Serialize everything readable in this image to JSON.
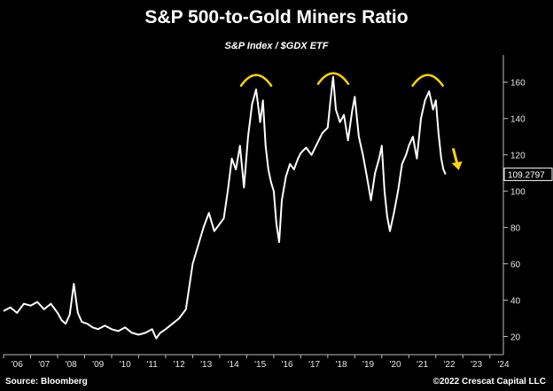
{
  "chart_data": {
    "type": "line",
    "title": "S&P 500-to-Gold Miners Ratio",
    "subtitle": "S&P Index  / $GDX ETF",
    "xlabel": "",
    "ylabel": "",
    "xlim": [
      2006.0,
      2024.5
    ],
    "ylim": [
      10,
      175
    ],
    "grid": false,
    "y_ticks": [
      20,
      40,
      60,
      80,
      100,
      120,
      140,
      160
    ],
    "y_tick_labels": [
      "20",
      "40",
      "60",
      "80",
      "100",
      "120",
      "140",
      "160"
    ],
    "x_ticks": [
      2006,
      2007,
      2008,
      2009,
      2010,
      2011,
      2012,
      2013,
      2014,
      2015,
      2016,
      2017,
      2018,
      2019,
      2020,
      2021,
      2022,
      2023,
      2024
    ],
    "x_tick_labels": [
      "'06",
      "'07",
      "'08",
      "'09",
      "'10",
      "'11",
      "'12",
      "'13",
      "'14",
      "'15",
      "'16",
      "'17",
      "'18",
      "'19",
      "'20",
      "'21",
      "'22",
      "'23",
      "'24"
    ],
    "last_value_label": "109.2797",
    "series": [
      {
        "name": "",
        "color": "#ffffff",
        "x": [
          2006.0,
          2006.25,
          2006.5,
          2006.75,
          2007.0,
          2007.25,
          2007.5,
          2007.75,
          2008.0,
          2008.15,
          2008.3,
          2008.45,
          2008.6,
          2008.75,
          2008.9,
          2009.1,
          2009.3,
          2009.5,
          2009.75,
          2010.0,
          2010.25,
          2010.5,
          2010.75,
          2011.0,
          2011.25,
          2011.5,
          2011.65,
          2011.8,
          2012.0,
          2012.25,
          2012.5,
          2012.75,
          2013.0,
          2013.2,
          2013.4,
          2013.6,
          2013.8,
          2014.0,
          2014.15,
          2014.3,
          2014.45,
          2014.6,
          2014.75,
          2014.9,
          2015.05,
          2015.2,
          2015.35,
          2015.5,
          2015.6,
          2015.7,
          2015.8,
          2015.9,
          2016.0,
          2016.1,
          2016.2,
          2016.3,
          2016.45,
          2016.6,
          2016.75,
          2016.9,
          2017.0,
          2017.2,
          2017.4,
          2017.6,
          2017.8,
          2018.0,
          2018.1,
          2018.2,
          2018.3,
          2018.45,
          2018.6,
          2018.75,
          2018.9,
          2019.0,
          2019.15,
          2019.3,
          2019.45,
          2019.6,
          2019.75,
          2019.9,
          2020.0,
          2020.1,
          2020.2,
          2020.3,
          2020.45,
          2020.6,
          2020.75,
          2020.9,
          2021.0,
          2021.15,
          2021.3,
          2021.45,
          2021.6,
          2021.75,
          2021.9,
          2022.0,
          2022.1,
          2022.2,
          2022.28,
          2022.36
        ],
        "y": [
          34,
          36,
          33,
          38,
          37,
          39,
          35,
          38,
          33,
          29,
          27,
          32,
          49,
          33,
          28,
          27,
          25,
          24,
          26,
          24,
          23,
          25,
          22,
          21,
          22,
          24,
          19,
          22,
          24,
          27,
          30,
          35,
          60,
          70,
          80,
          88,
          78,
          82,
          85,
          100,
          118,
          112,
          125,
          102,
          130,
          148,
          156,
          138,
          150,
          125,
          112,
          105,
          100,
          82,
          72,
          95,
          108,
          115,
          112,
          118,
          121,
          124,
          120,
          126,
          132,
          135,
          150,
          163,
          145,
          138,
          142,
          128,
          144,
          152,
          130,
          120,
          108,
          95,
          110,
          118,
          125,
          100,
          86,
          78,
          88,
          100,
          115,
          120,
          125,
          130,
          118,
          140,
          150,
          155,
          145,
          150,
          132,
          118,
          112,
          109.28
        ]
      }
    ],
    "annotations": {
      "arcs": [
        {
          "x": 2015.35,
          "y": 162,
          "label": ""
        },
        {
          "x": 2018.2,
          "y": 163,
          "label": ""
        },
        {
          "x": 2021.7,
          "y": 162,
          "label": ""
        }
      ],
      "arrow": {
        "x": 2022.75,
        "y_from": 123,
        "y_to": 113,
        "color": "#ffd400"
      },
      "arc_color": "#ffd400"
    },
    "source": "Source: Bloomberg",
    "copyright": "©2022 Crescat Capital LLC"
  }
}
